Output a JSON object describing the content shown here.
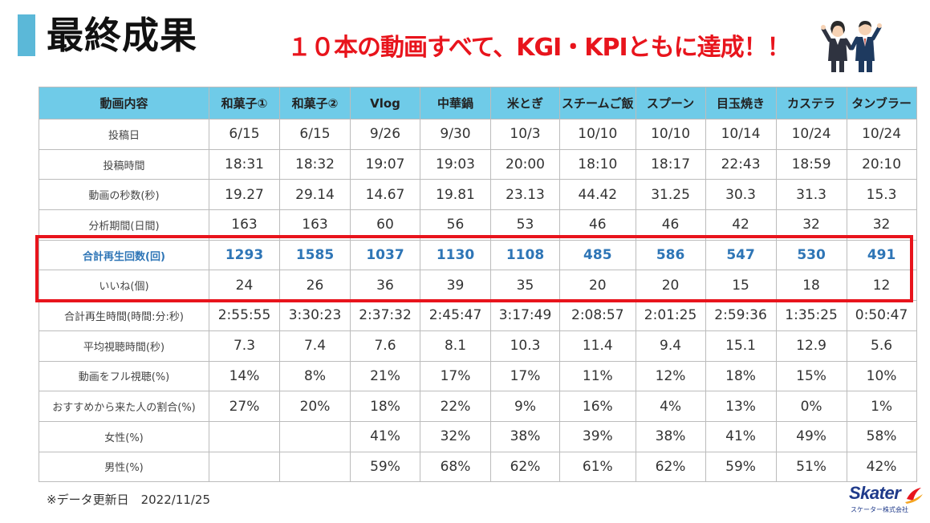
{
  "header": {
    "title": "最終成果",
    "headline": "１０本の動画すべて、KGI・KPIともに達成！！"
  },
  "table": {
    "columns": [
      "動画内容",
      "和菓子①",
      "和菓子②",
      "Vlog",
      "中華鍋",
      "米とぎ",
      "スチームご飯",
      "スプーン",
      "目玉焼き",
      "カステラ",
      "タンブラー"
    ],
    "rows": [
      {
        "label": "投稿日",
        "values": [
          "6/15",
          "6/15",
          "9/26",
          "9/30",
          "10/3",
          "10/10",
          "10/10",
          "10/14",
          "10/24",
          "10/24"
        ]
      },
      {
        "label": "投稿時間",
        "values": [
          "18:31",
          "18:32",
          "19:07",
          "19:03",
          "20:00",
          "18:10",
          "18:17",
          "22:43",
          "18:59",
          "20:10"
        ]
      },
      {
        "label": "動画の秒数(秒)",
        "values": [
          "19.27",
          "29.14",
          "14.67",
          "19.81",
          "23.13",
          "44.42",
          "31.25",
          "30.3",
          "31.3",
          "15.3"
        ]
      },
      {
        "label": "分析期間(日間)",
        "values": [
          "163",
          "163",
          "60",
          "56",
          "53",
          "46",
          "46",
          "42",
          "32",
          "32"
        ]
      },
      {
        "label": "合計再生回数(回)",
        "highlight": true,
        "values": [
          "1293",
          "1585",
          "1037",
          "1130",
          "1108",
          "485",
          "586",
          "547",
          "530",
          "491"
        ]
      },
      {
        "label": "いいね(個)",
        "values": [
          "24",
          "26",
          "36",
          "39",
          "35",
          "20",
          "20",
          "15",
          "18",
          "12"
        ]
      },
      {
        "label": "合計再生時間(時間:分:秒)",
        "values": [
          "2:55:55",
          "3:30:23",
          "2:37:32",
          "2:45:47",
          "3:17:49",
          "2:08:57",
          "2:01:25",
          "2:59:36",
          "1:35:25",
          "0:50:47"
        ]
      },
      {
        "label": "平均視聴時間(秒)",
        "values": [
          "7.3",
          "7.4",
          "7.6",
          "8.1",
          "10.3",
          "11.4",
          "9.4",
          "15.1",
          "12.9",
          "5.6"
        ]
      },
      {
        "label": "動画をフル視聴(%)",
        "values": [
          "14%",
          "8%",
          "21%",
          "17%",
          "17%",
          "11%",
          "12%",
          "18%",
          "15%",
          "10%"
        ]
      },
      {
        "label": "おすすめから来た人の割合(%)",
        "values": [
          "27%",
          "20%",
          "18%",
          "22%",
          "9%",
          "16%",
          "4%",
          "13%",
          "0%",
          "1%"
        ]
      },
      {
        "label": "女性(%)",
        "values": [
          "",
          "",
          "41%",
          "32%",
          "38%",
          "39%",
          "38%",
          "41%",
          "49%",
          "58%"
        ]
      },
      {
        "label": "男性(%)",
        "values": [
          "",
          "",
          "59%",
          "68%",
          "62%",
          "61%",
          "62%",
          "59%",
          "51%",
          "42%"
        ]
      }
    ]
  },
  "footnote": "※データ更新日　2022/11/25",
  "logo": {
    "name": "Skater",
    "sub": "スケーター株式会社"
  },
  "colors": {
    "accent_red": "#e8141c",
    "header_blue": "#6fcbe8",
    "highlight_text": "#2e75b6",
    "title_bar": "#5bb8d8"
  },
  "icons": [
    "celebrating-people-icon",
    "skater-logo-mark-icon"
  ]
}
